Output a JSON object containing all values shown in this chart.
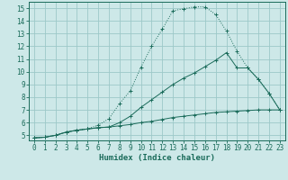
{
  "xlabel": "Humidex (Indice chaleur)",
  "background_color": "#cde8e8",
  "grid_color": "#9dc8c8",
  "line_color": "#1a6b5a",
  "xlim_min": -0.5,
  "xlim_max": 23.5,
  "ylim_min": 4.6,
  "ylim_max": 15.5,
  "xticks": [
    0,
    1,
    2,
    3,
    4,
    5,
    6,
    7,
    8,
    9,
    10,
    11,
    12,
    13,
    14,
    15,
    16,
    17,
    18,
    19,
    20,
    21,
    22,
    23
  ],
  "yticks": [
    5,
    6,
    7,
    8,
    9,
    10,
    11,
    12,
    13,
    14,
    15
  ],
  "line1_x": [
    0,
    1,
    2,
    3,
    4,
    5,
    6,
    7,
    8,
    9,
    10,
    11,
    12,
    13,
    14,
    15,
    16,
    17,
    18,
    19,
    20,
    21,
    22,
    23
  ],
  "line1_y": [
    4.8,
    4.85,
    5.0,
    5.25,
    5.4,
    5.5,
    5.6,
    5.65,
    5.75,
    5.85,
    6.0,
    6.1,
    6.25,
    6.4,
    6.5,
    6.6,
    6.7,
    6.8,
    6.85,
    6.9,
    6.95,
    7.0,
    7.0,
    7.0
  ],
  "line2_x": [
    0,
    1,
    2,
    3,
    4,
    5,
    6,
    7,
    8,
    9,
    10,
    11,
    12,
    13,
    14,
    15,
    16,
    17,
    18,
    19,
    20,
    21,
    22,
    23
  ],
  "line2_y": [
    4.8,
    4.85,
    5.0,
    5.25,
    5.4,
    5.5,
    5.8,
    6.3,
    7.5,
    8.5,
    10.35,
    12.0,
    13.35,
    14.8,
    14.95,
    15.1,
    15.1,
    14.5,
    13.2,
    11.6,
    10.3,
    9.4,
    8.3,
    7.0
  ],
  "line3_x": [
    0,
    1,
    2,
    3,
    4,
    5,
    6,
    7,
    8,
    9,
    10,
    11,
    12,
    13,
    14,
    15,
    16,
    17,
    18,
    19,
    20,
    21,
    22,
    23
  ],
  "line3_y": [
    4.8,
    4.85,
    5.0,
    5.25,
    5.4,
    5.5,
    5.6,
    5.65,
    6.0,
    6.5,
    7.2,
    7.8,
    8.4,
    9.0,
    9.5,
    9.9,
    10.4,
    10.9,
    11.5,
    10.3,
    10.3,
    9.4,
    8.3,
    7.0
  ],
  "tick_fontsize": 5.5,
  "xlabel_fontsize": 6.5
}
